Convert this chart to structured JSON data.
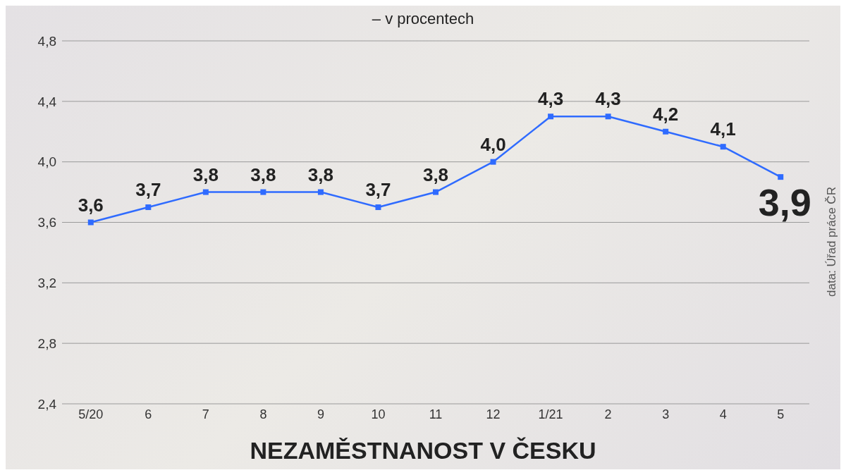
{
  "chart_data": {
    "type": "line",
    "title": "NEZAMĚSTNANOST V ČESKU",
    "subtitle": "– v procentech",
    "annotations": [
      "data: Úřad práce ČR"
    ],
    "categories": [
      "5/20",
      "6",
      "7",
      "8",
      "9",
      "10",
      "11",
      "12",
      "1/21",
      "2",
      "3",
      "4",
      "5"
    ],
    "series": [
      {
        "color": "#2f6bff",
        "values": [
          3.6,
          3.7,
          3.8,
          3.8,
          3.8,
          3.7,
          3.8,
          4.0,
          4.3,
          4.3,
          4.2,
          4.1,
          3.9
        ],
        "value_labels": [
          "3,6",
          "3,7",
          "3,8",
          "3,8",
          "3,8",
          "3,7",
          "3,8",
          "4,0",
          "4,3",
          "4,3",
          "4,2",
          "4,1",
          "3,9"
        ]
      }
    ],
    "ylim": [
      2.4,
      4.8
    ],
    "yticks": [
      {
        "value": 2.4,
        "label": "2,4"
      },
      {
        "value": 2.8,
        "label": "2,8"
      },
      {
        "value": 3.2,
        "label": "3,2"
      },
      {
        "value": 3.6,
        "label": "3,6"
      },
      {
        "value": 4.0,
        "label": "4,0"
      },
      {
        "value": 4.4,
        "label": "4,4"
      },
      {
        "value": 4.8,
        "label": "4,8"
      }
    ],
    "grid": "y",
    "marker": "square",
    "line_style": "solid"
  }
}
